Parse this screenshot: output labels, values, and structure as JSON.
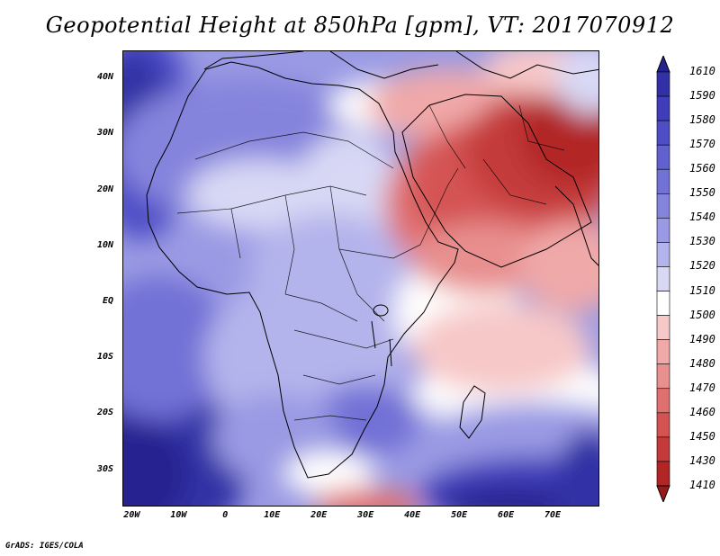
{
  "title": "Geopotential Height at 850hPa [gpm], VT: 2017070912",
  "credit": "GrADS: IGES/COLA",
  "y_axis": {
    "labels": [
      "40N",
      "30N",
      "20N",
      "10N",
      "EQ",
      "10S",
      "20S",
      "30S"
    ],
    "lat_values": [
      40,
      30,
      20,
      10,
      0,
      -10,
      -20,
      -30
    ]
  },
  "x_axis": {
    "labels": [
      "20W",
      "10W",
      "0",
      "10E",
      "20E",
      "30E",
      "40E",
      "50E",
      "60E",
      "70E"
    ],
    "lon_values": [
      -20,
      -10,
      0,
      10,
      20,
      30,
      40,
      50,
      60,
      70
    ]
  },
  "domain": {
    "lon_range": [
      -22,
      80
    ],
    "lat_range": [
      -36.5,
      45
    ]
  },
  "colorbar": {
    "labels": [
      "1610",
      "1590",
      "1580",
      "1570",
      "1560",
      "1550",
      "1540",
      "1530",
      "1520",
      "1510",
      "1500",
      "1490",
      "1480",
      "1470",
      "1460",
      "1450",
      "1430",
      "1410"
    ],
    "colors": [
      "#28228f",
      "#3230a6",
      "#3f3db9",
      "#4e4dc6",
      "#6060cf",
      "#7271d6",
      "#8584dd",
      "#9a9ae4",
      "#b4b4ec",
      "#d8d8f5",
      "#ffffff",
      "#f7c8c8",
      "#f0a9a9",
      "#e88f8f",
      "#e07070",
      "#d45252",
      "#c43a3a",
      "#b22525",
      "#9a1a1a"
    ]
  }
}
